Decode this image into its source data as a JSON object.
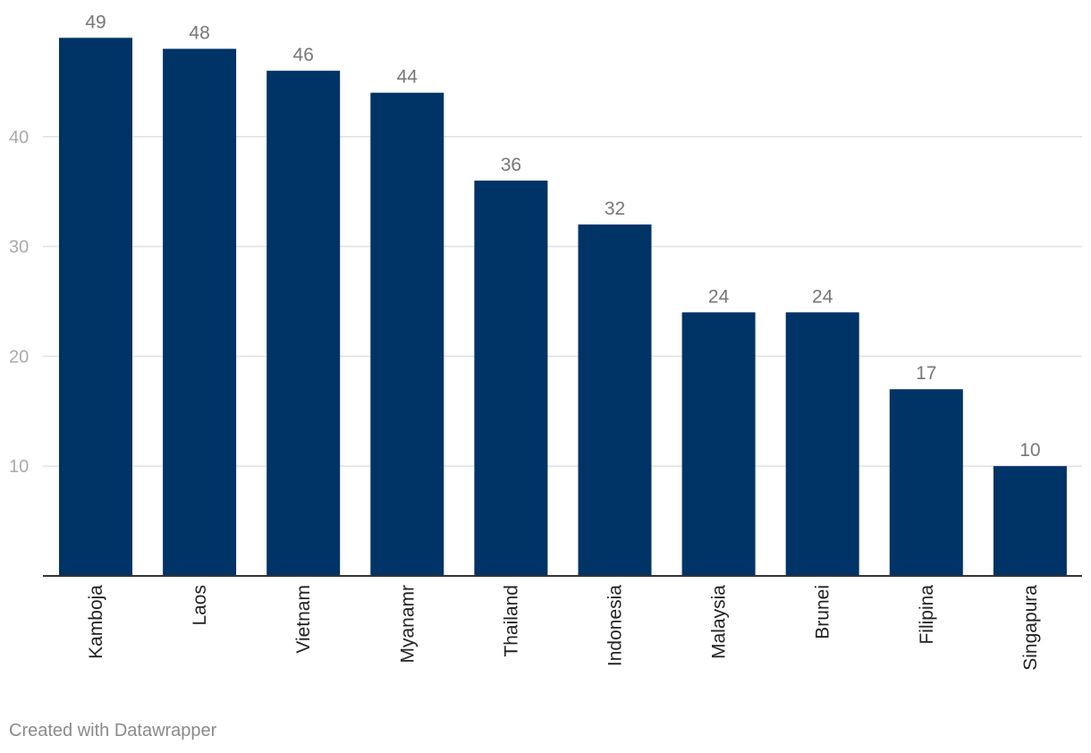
{
  "chart_data": {
    "type": "bar",
    "categories": [
      "Kamboja",
      "Laos",
      "Vietnam",
      "Myanamr",
      "Thailand",
      "Indonesia",
      "Malaysia",
      "Brunei",
      "Filipina",
      "Singapura"
    ],
    "values": [
      49,
      48,
      46,
      44,
      36,
      32,
      24,
      24,
      17,
      10
    ],
    "y_ticks": [
      10,
      20,
      30,
      40
    ],
    "ylim": [
      0,
      52
    ],
    "grid": true,
    "colors": {
      "bar": "#003366",
      "grid": "#e0e0e0",
      "axis": "#333333",
      "tick_label": "#aaaaaa",
      "value_label": "#777777"
    }
  },
  "footer": {
    "credit": "Created with Datawrapper"
  }
}
